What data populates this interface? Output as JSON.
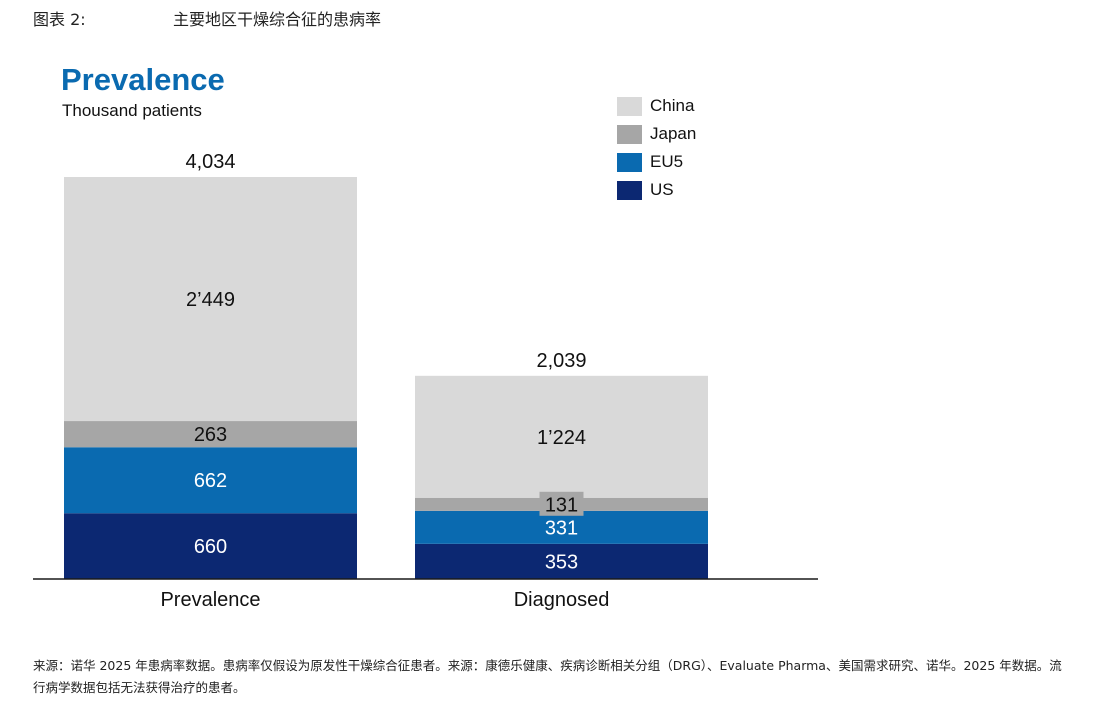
{
  "figure": {
    "label": "图表 2:",
    "title": "主要地区干燥综合征的患病率"
  },
  "chart_data": {
    "type": "bar",
    "stacked": true,
    "title": "Prevalence",
    "subtitle": "Thousand patients",
    "categories": [
      "Prevalence",
      "Diagnosed"
    ],
    "series": [
      {
        "name": "US",
        "values": [
          660,
          353
        ],
        "labels": [
          "660",
          "353"
        ],
        "color": "#0c2872",
        "label_color": "#ffffff"
      },
      {
        "name": "EU5",
        "values": [
          662,
          331
        ],
        "labels": [
          "662",
          "331"
        ],
        "color": "#0a6ab0",
        "label_color": "#ffffff"
      },
      {
        "name": "Japan",
        "values": [
          263,
          131
        ],
        "labels": [
          "263",
          "131"
        ],
        "color": "#a6a6a6",
        "label_color": "#111111"
      },
      {
        "name": "China",
        "values": [
          2449,
          1224
        ],
        "labels": [
          "2’449",
          "1’224"
        ],
        "color": "#d9d9d9",
        "label_color": "#111111"
      }
    ],
    "totals": [
      "4,034",
      "2,039"
    ],
    "legend_order": [
      "China",
      "Japan",
      "EU5",
      "US"
    ],
    "legend_position": "top-right",
    "grid": false
  },
  "source_note": "来源：诺华 2025 年患病率数据。患病率仅假设为原发性干燥综合征患者。来源：康德乐健康、疾病诊断相关分组（DRG）、Evaluate Pharma、美国需求研究、诺华。2025 年数据。流行病学数据包括无法获得治疗的患者。"
}
